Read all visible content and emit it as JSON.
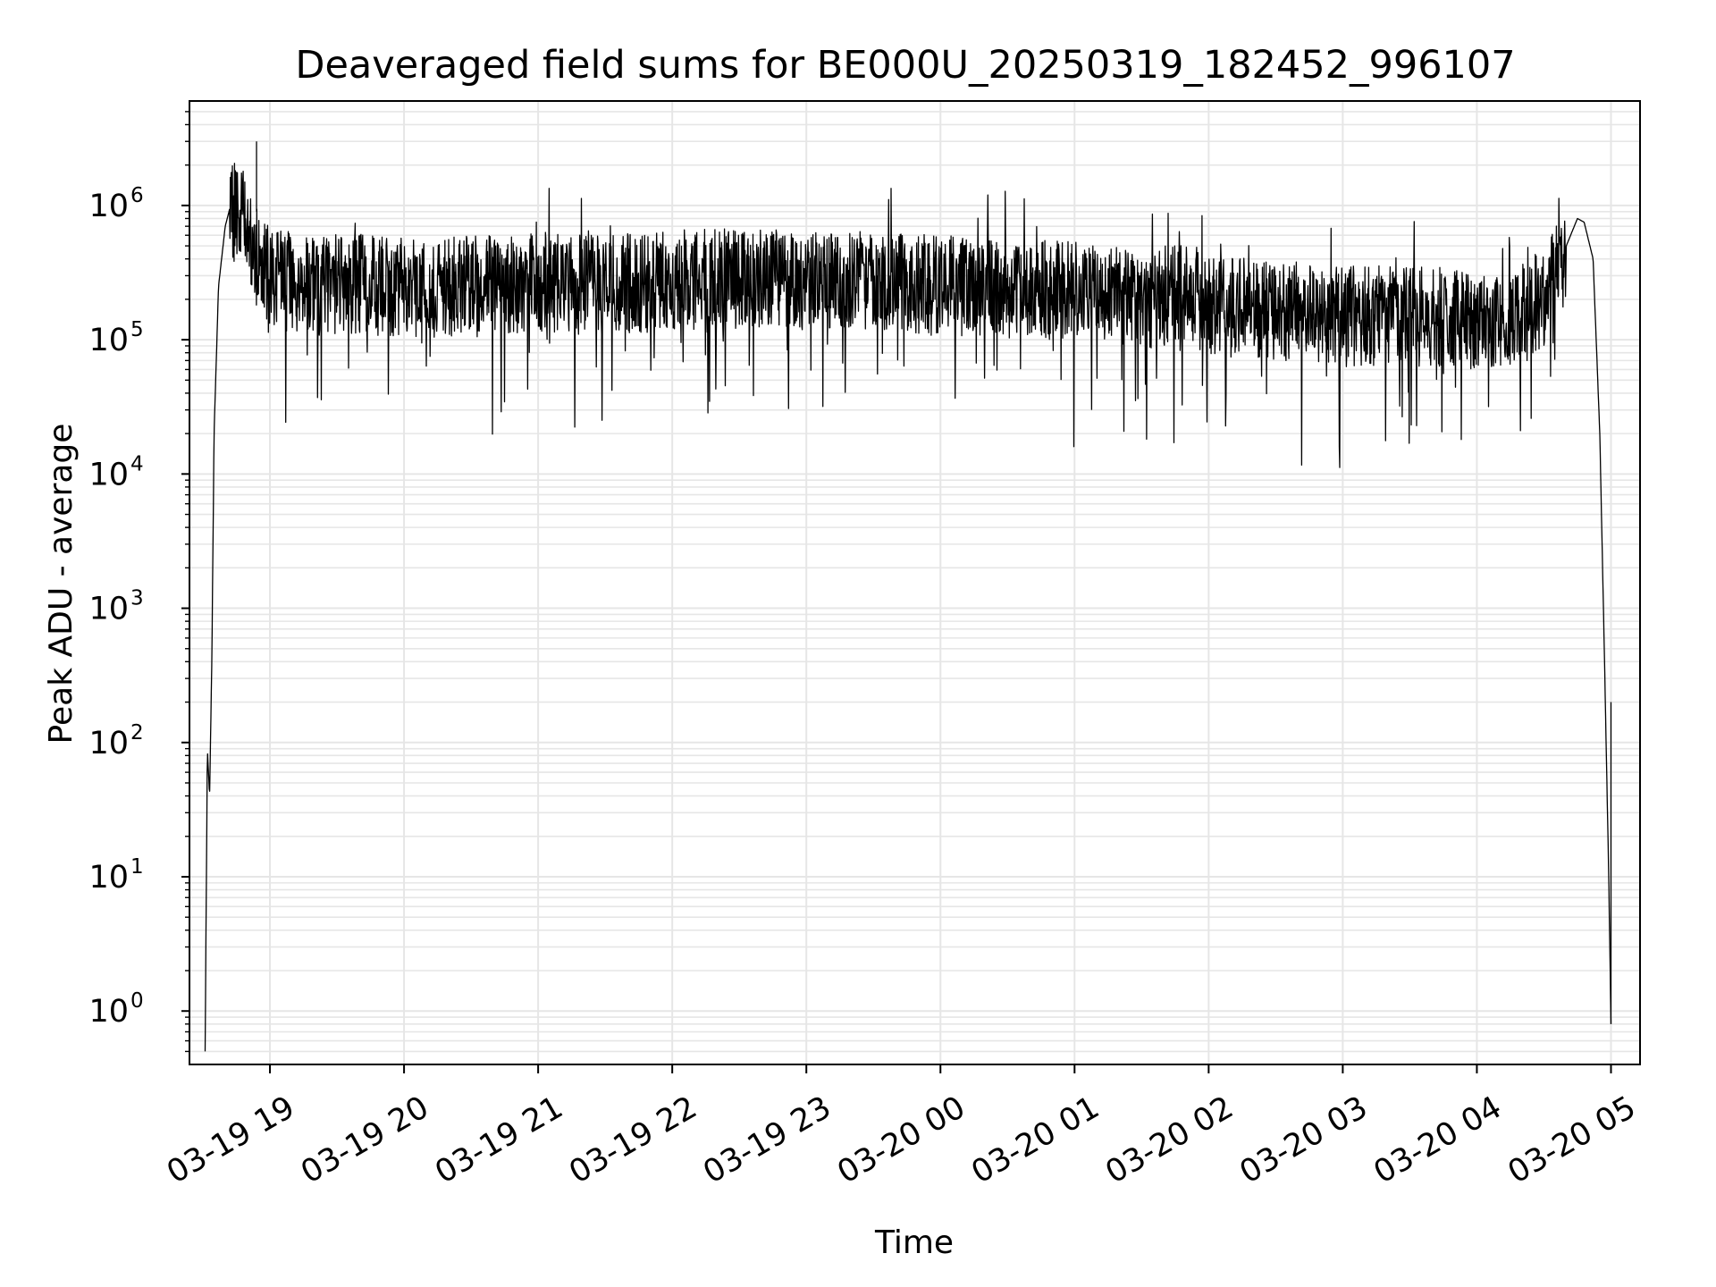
{
  "chart_data": {
    "type": "line",
    "title": "Deaveraged field sums for BE000U_20250319_182452_996107",
    "xlabel": "Time",
    "ylabel": "Peak ADU - average",
    "yscale": "log",
    "grid": true,
    "grid_minor": true,
    "xlim": [
      "2025-03-19 18:24",
      "2025-03-20 05:13"
    ],
    "ylim": [
      0.4,
      6000000
    ],
    "x_ticks": [
      "03-19 19",
      "03-19 20",
      "03-19 21",
      "03-19 22",
      "03-19 23",
      "03-20 00",
      "03-20 01",
      "03-20 02",
      "03-20 03",
      "03-20 04",
      "03-20 05"
    ],
    "y_ticks": [
      {
        "base": "10",
        "exp": "0"
      },
      {
        "base": "10",
        "exp": "1"
      },
      {
        "base": "10",
        "exp": "2"
      },
      {
        "base": "10",
        "exp": "3"
      },
      {
        "base": "10",
        "exp": "4"
      },
      {
        "base": "10",
        "exp": "5"
      },
      {
        "base": "10",
        "exp": "6"
      }
    ],
    "line_color": "#000000",
    "grid_color": "#e6e6e6",
    "series": [
      {
        "name": "",
        "x": [
          "2025-03-19 18:31",
          "2025-03-19 18:32",
          "2025-03-19 18:33",
          "2025-03-19 18:34",
          "2025-03-19 18:35",
          "2025-03-19 18:37",
          "2025-03-19 18:40",
          "2025-03-19 18:43",
          "2025-03-19 18:46",
          "2025-03-19 18:49",
          "2025-03-19 18:52",
          "2025-03-19 18:55",
          "2025-03-19 18:58",
          "2025-03-19 19:05",
          "2025-03-19 19:20",
          "2025-03-19 19:40",
          "2025-03-19 20:00",
          "2025-03-19 20:30",
          "2025-03-19 21:00",
          "2025-03-19 21:30",
          "2025-03-19 22:00",
          "2025-03-19 22:30",
          "2025-03-19 23:00",
          "2025-03-19 23:30",
          "2025-03-20 00:00",
          "2025-03-20 00:30",
          "2025-03-20 01:00",
          "2025-03-20 01:30",
          "2025-03-20 01:50",
          "2025-03-20 02:00",
          "2025-03-20 02:30",
          "2025-03-20 03:00",
          "2025-03-20 03:30",
          "2025-03-20 04:00",
          "2025-03-20 04:20",
          "2025-03-20 04:30",
          "2025-03-20 04:40",
          "2025-03-20 04:45",
          "2025-03-20 04:48",
          "2025-03-20 04:52",
          "2025-03-20 04:55",
          "2025-03-20 04:57",
          "2025-03-20 04:59",
          "2025-03-20 05:00"
        ],
        "y": [
          0.5,
          90,
          40,
          400,
          20000,
          250000,
          700000,
          1100000,
          1000000,
          900000,
          600000,
          450000,
          380000,
          330000,
          300000,
          310000,
          290000,
          300000,
          320000,
          300000,
          330000,
          340000,
          330000,
          320000,
          300000,
          290000,
          270000,
          230000,
          280000,
          210000,
          200000,
          180000,
          180000,
          170000,
          180000,
          250000,
          500000,
          800000,
          750000,
          400000,
          20000,
          500,
          10,
          0.8
        ]
      }
    ]
  }
}
